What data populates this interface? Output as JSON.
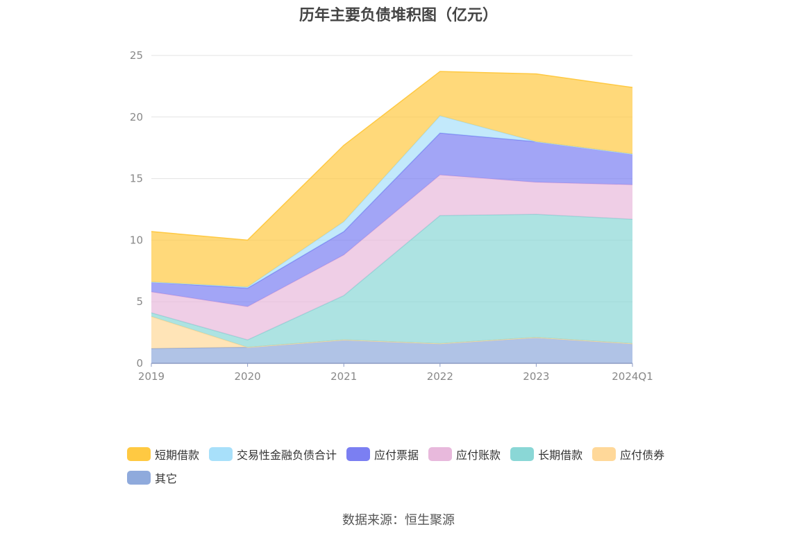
{
  "chart_data": {
    "type": "area",
    "stacked": true,
    "title": "历年主要负债堆积图（亿元）",
    "categories": [
      "2019",
      "2020",
      "2021",
      "2022",
      "2023",
      "2024Q1"
    ],
    "y_ticks": [
      "0",
      "5",
      "10",
      "15",
      "20",
      "25"
    ],
    "ylim": [
      0,
      25
    ],
    "grid": true,
    "legend_position": "bottom",
    "series": [
      {
        "name": "其它",
        "color": "#8FAADC",
        "values": [
          1.2,
          1.3,
          1.9,
          1.6,
          2.1,
          1.6
        ]
      },
      {
        "name": "应付债券",
        "color": "#FFD899",
        "values": [
          2.6,
          0.0,
          0.0,
          0.0,
          0.0,
          0.0
        ]
      },
      {
        "name": "长期借款",
        "color": "#8AD7D6",
        "values": [
          0.3,
          0.6,
          3.6,
          10.4,
          10.0,
          10.1
        ]
      },
      {
        "name": "应付账款",
        "color": "#E8B9DC",
        "values": [
          1.7,
          2.7,
          3.3,
          3.3,
          2.6,
          2.8
        ]
      },
      {
        "name": "应付票据",
        "color": "#7B7FF2",
        "values": [
          0.8,
          1.5,
          1.9,
          3.4,
          3.3,
          2.5
        ]
      },
      {
        "name": "交易性金融负债合计",
        "color": "#A8E0FA",
        "values": [
          0.0,
          0.1,
          0.8,
          1.4,
          0.0,
          0.0
        ]
      },
      {
        "name": "短期借款",
        "color": "#FFC942",
        "values": [
          4.1,
          3.8,
          6.2,
          3.6,
          5.5,
          5.4
        ]
      }
    ],
    "legend_order": [
      "短期借款",
      "交易性金融负债合计",
      "应付票据",
      "应付账款",
      "长期借款",
      "应付债券",
      "其它"
    ]
  },
  "source": "数据来源：恒生聚源"
}
